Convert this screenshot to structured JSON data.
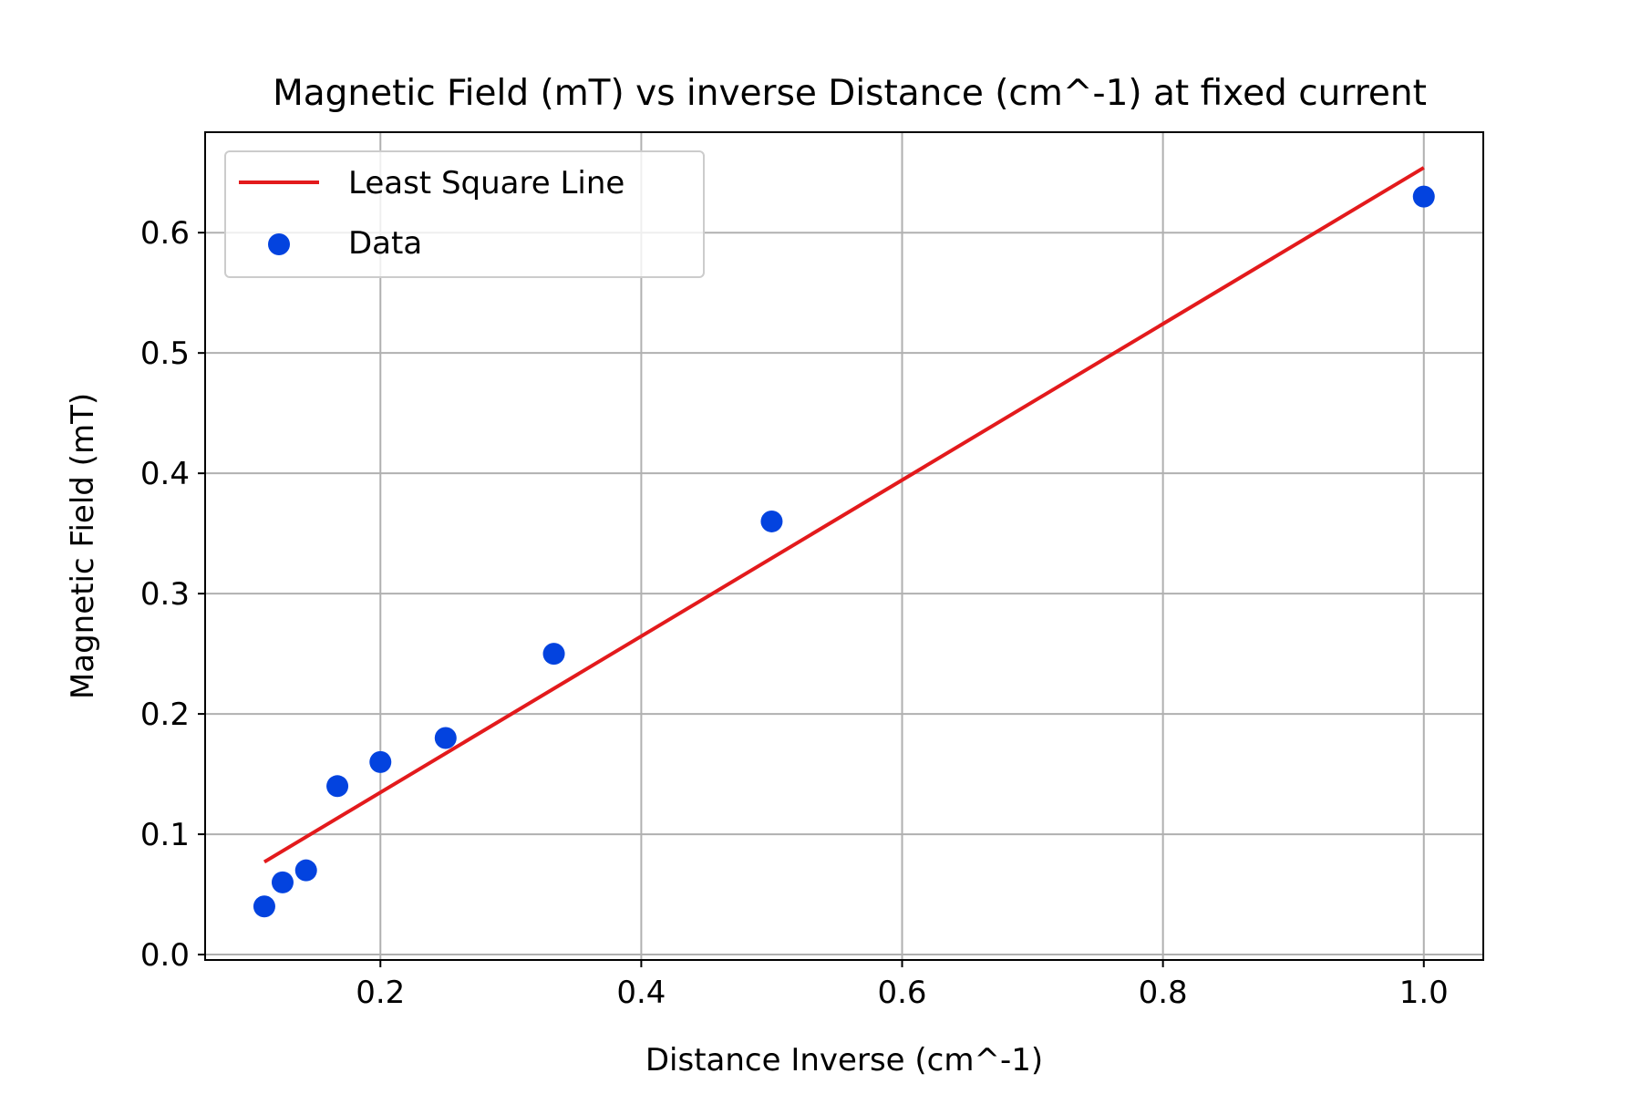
{
  "chart_data": {
    "type": "scatter",
    "title": "Magnetic Field (mT) vs inverse Distance (cm^-1) at fixed current",
    "xlabel": "Distance Inverse (cm^-1)",
    "ylabel": "Magnetic Field (mT)",
    "xlim": [
      0.0656,
      1.0456
    ],
    "ylim": [
      -0.0045,
      0.6835
    ],
    "xticks": [
      0.2,
      0.4,
      0.6,
      0.8,
      1.0
    ],
    "xtick_labels": [
      "0.2",
      "0.4",
      "0.6",
      "0.8",
      "1.0"
    ],
    "yticks": [
      0.0,
      0.1,
      0.2,
      0.3,
      0.4,
      0.5,
      0.6
    ],
    "ytick_labels": [
      "0.0",
      "0.1",
      "0.2",
      "0.3",
      "0.4",
      "0.5",
      "0.6"
    ],
    "grid": true,
    "legend_position": "top-left",
    "series": [
      {
        "name": "Least Square Line",
        "kind": "line",
        "color": "#e31a1c",
        "x": [
          0.111,
          1.0
        ],
        "y": [
          0.077,
          0.654
        ]
      },
      {
        "name": "Data",
        "kind": "scatter",
        "color": "#0343df",
        "x": [
          0.111,
          0.125,
          0.143,
          0.167,
          0.2,
          0.25,
          0.333,
          0.5,
          1.0
        ],
        "y": [
          0.04,
          0.06,
          0.07,
          0.14,
          0.16,
          0.18,
          0.25,
          0.36,
          0.63
        ]
      }
    ]
  }
}
